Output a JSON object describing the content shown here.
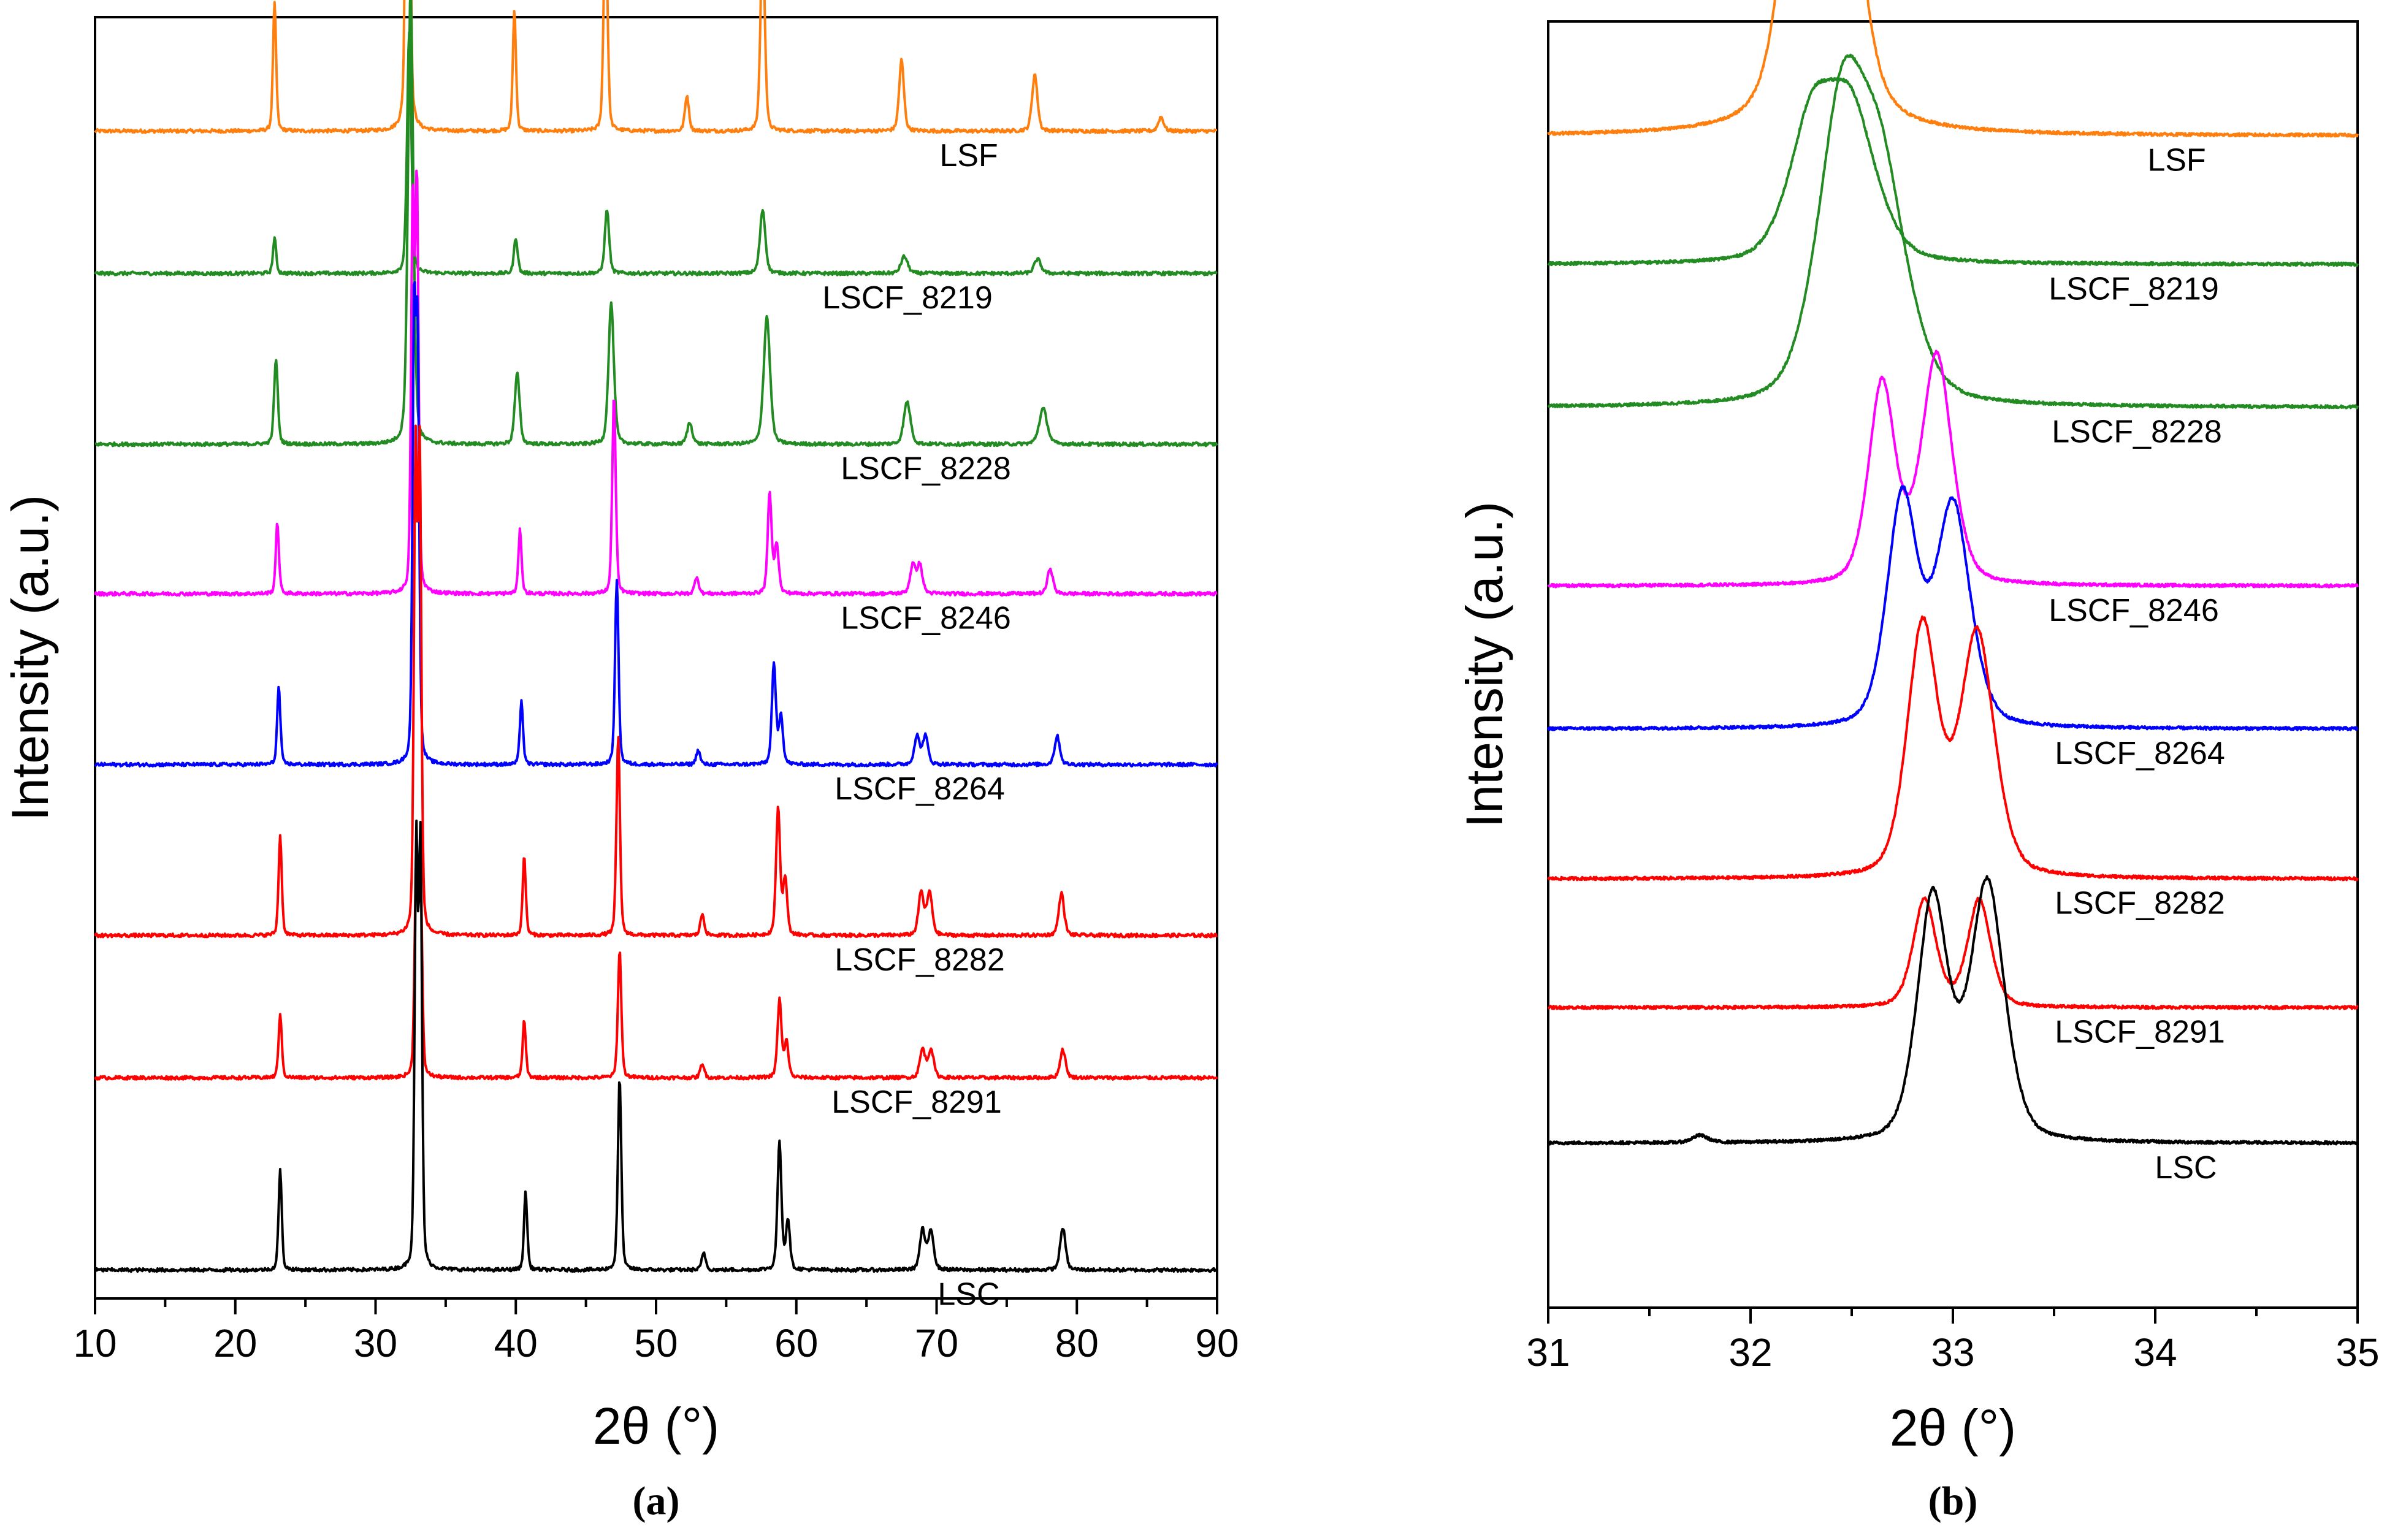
{
  "chart_data": [
    {
      "type": "line",
      "panel": "a",
      "caption": "(a)",
      "xlabel": "2θ (°)",
      "ylabel": "Intensity (a.u.)",
      "xlim": [
        10,
        90
      ],
      "xticks": [
        10,
        20,
        30,
        40,
        50,
        60,
        70,
        80,
        90
      ],
      "yticks_shown": false,
      "grid": false,
      "offset_stack": true,
      "series": [
        {
          "name": "LSF",
          "color": "#FF7F0E",
          "baseline": 8.2,
          "peaks": [
            [
              22.8,
              0.9,
              0.12
            ],
            [
              32.3,
              6.6,
              0.12
            ],
            [
              39.9,
              0.85,
              0.12
            ],
            [
              46.4,
              1.6,
              0.14
            ],
            [
              52.2,
              0.25,
              0.15
            ],
            [
              57.6,
              1.4,
              0.16
            ],
            [
              67.5,
              0.5,
              0.18
            ],
            [
              77.0,
              0.4,
              0.2
            ],
            [
              86.0,
              0.1,
              0.2
            ]
          ]
        },
        {
          "name": "LSCF_8219",
          "color": "#228B22",
          "baseline": 7.2,
          "peaks": [
            [
              22.8,
              0.25,
              0.12
            ],
            [
              32.4,
              1.7,
              0.16
            ],
            [
              40.0,
              0.25,
              0.14
            ],
            [
              46.5,
              0.45,
              0.16
            ],
            [
              57.6,
              0.45,
              0.2
            ],
            [
              67.7,
              0.12,
              0.25
            ],
            [
              77.2,
              0.1,
              0.25
            ]
          ]
        },
        {
          "name": "LSCF_8228",
          "color": "#228B22",
          "baseline": 6.0,
          "peaks": [
            [
              22.9,
              0.6,
              0.14
            ],
            [
              32.5,
              3.2,
              0.2
            ],
            [
              40.1,
              0.5,
              0.18
            ],
            [
              46.8,
              1.0,
              0.2
            ],
            [
              52.4,
              0.15,
              0.2
            ],
            [
              57.9,
              0.9,
              0.24
            ],
            [
              67.9,
              0.3,
              0.25
            ],
            [
              77.6,
              0.25,
              0.3
            ]
          ]
        },
        {
          "name": "LSCF_8246",
          "color": "#FF00FF",
          "baseline": 4.95,
          "peaks": [
            [
              23.0,
              0.5,
              0.12
            ],
            [
              32.65,
              2.7,
              0.12
            ],
            [
              32.95,
              2.8,
              0.12
            ],
            [
              40.3,
              0.45,
              0.12
            ],
            [
              47.0,
              1.4,
              0.13
            ],
            [
              52.9,
              0.12,
              0.15
            ],
            [
              58.1,
              0.7,
              0.15
            ],
            [
              58.6,
              0.35,
              0.15
            ],
            [
              68.3,
              0.2,
              0.2
            ],
            [
              68.8,
              0.2,
              0.2
            ],
            [
              78.1,
              0.18,
              0.2
            ]
          ]
        },
        {
          "name": "LSCF_8264",
          "color": "#0000FF",
          "baseline": 3.75,
          "peaks": [
            [
              23.1,
              0.55,
              0.12
            ],
            [
              32.75,
              3.0,
              0.12
            ],
            [
              33.0,
              2.8,
              0.12
            ],
            [
              40.4,
              0.45,
              0.12
            ],
            [
              47.2,
              1.3,
              0.13
            ],
            [
              53.0,
              0.1,
              0.15
            ],
            [
              58.4,
              0.7,
              0.15
            ],
            [
              58.9,
              0.35,
              0.15
            ],
            [
              68.6,
              0.2,
              0.2
            ],
            [
              69.2,
              0.2,
              0.2
            ],
            [
              78.6,
              0.2,
              0.2
            ]
          ]
        },
        {
          "name": "LSCF_8282",
          "color": "#FF0000",
          "baseline": 2.55,
          "peaks": [
            [
              23.2,
              0.7,
              0.12
            ],
            [
              32.85,
              3.3,
              0.12
            ],
            [
              33.15,
              3.3,
              0.12
            ],
            [
              40.6,
              0.55,
              0.12
            ],
            [
              47.3,
              1.4,
              0.13
            ],
            [
              53.3,
              0.15,
              0.15
            ],
            [
              58.7,
              0.9,
              0.15
            ],
            [
              59.2,
              0.4,
              0.15
            ],
            [
              68.9,
              0.3,
              0.2
            ],
            [
              69.5,
              0.3,
              0.2
            ],
            [
              78.9,
              0.3,
              0.2
            ]
          ]
        },
        {
          "name": "LSCF_8291",
          "color": "#FF0000",
          "baseline": 1.55,
          "peaks": [
            [
              23.2,
              0.45,
              0.12
            ],
            [
              32.9,
              1.5,
              0.12
            ],
            [
              33.2,
              1.5,
              0.12
            ],
            [
              40.6,
              0.4,
              0.12
            ],
            [
              47.4,
              0.9,
              0.13
            ],
            [
              53.3,
              0.1,
              0.15
            ],
            [
              58.8,
              0.55,
              0.15
            ],
            [
              59.3,
              0.25,
              0.15
            ],
            [
              69.0,
              0.2,
              0.2
            ],
            [
              69.6,
              0.2,
              0.2
            ],
            [
              79.0,
              0.2,
              0.2
            ]
          ]
        },
        {
          "name": "LSC",
          "color": "#000000",
          "baseline": 0.2,
          "peaks": [
            [
              23.2,
              0.7,
              0.12
            ],
            [
              32.9,
              2.9,
              0.12
            ],
            [
              33.2,
              2.9,
              0.12
            ],
            [
              40.7,
              0.55,
              0.12
            ],
            [
              47.4,
              1.35,
              0.13
            ],
            [
              53.4,
              0.12,
              0.15
            ],
            [
              58.8,
              0.9,
              0.15
            ],
            [
              59.4,
              0.35,
              0.15
            ],
            [
              69.0,
              0.28,
              0.2
            ],
            [
              69.6,
              0.28,
              0.2
            ],
            [
              79.0,
              0.3,
              0.2
            ]
          ]
        }
      ]
    },
    {
      "type": "line",
      "panel": "b",
      "caption": "(b)",
      "xlabel": "2θ (°)",
      "ylabel": "Intensity (a.u.)",
      "xlim": [
        31,
        35
      ],
      "xticks": [
        31,
        32,
        33,
        34,
        35
      ],
      "yticks_shown": false,
      "grid": false,
      "offset_stack": true,
      "series": [
        {
          "name": "LSF",
          "color": "#FF7F0E",
          "baseline": 8.2,
          "peaks": [
            [
              32.35,
              5.2,
              0.12
            ]
          ]
        },
        {
          "name": "LSCF_8219",
          "color": "#228B22",
          "baseline": 7.3,
          "peaks": [
            [
              32.3,
              0.9,
              0.12
            ],
            [
              32.5,
              1.0,
              0.13
            ]
          ]
        },
        {
          "name": "LSCF_8228",
          "color": "#228B22",
          "baseline": 6.3,
          "peaks": [
            [
              32.45,
              1.9,
              0.13
            ],
            [
              32.65,
              1.4,
              0.14
            ]
          ]
        },
        {
          "name": "LSCF_8246",
          "color": "#FF00FF",
          "baseline": 5.05,
          "peaks": [
            [
              32.65,
              1.4,
              0.07
            ],
            [
              32.92,
              1.6,
              0.08
            ]
          ]
        },
        {
          "name": "LSCF_8264",
          "color": "#0000FF",
          "baseline": 4.05,
          "peaks": [
            [
              32.75,
              1.6,
              0.08
            ],
            [
              33.0,
              1.55,
              0.09
            ]
          ]
        },
        {
          "name": "LSCF_8282",
          "color": "#FF0000",
          "baseline": 3.0,
          "peaks": [
            [
              32.85,
              1.75,
              0.08
            ],
            [
              33.12,
              1.7,
              0.09
            ]
          ]
        },
        {
          "name": "LSCF_8291",
          "color": "#FF0000",
          "baseline": 2.1,
          "peaks": [
            [
              32.86,
              0.75,
              0.06
            ],
            [
              33.13,
              0.75,
              0.06
            ]
          ]
        },
        {
          "name": "LSC",
          "color": "#000000",
          "baseline": 1.15,
          "peaks": [
            [
              31.75,
              0.05,
              0.04
            ],
            [
              32.9,
              1.7,
              0.08
            ],
            [
              33.17,
              1.8,
              0.09
            ]
          ]
        }
      ]
    }
  ]
}
